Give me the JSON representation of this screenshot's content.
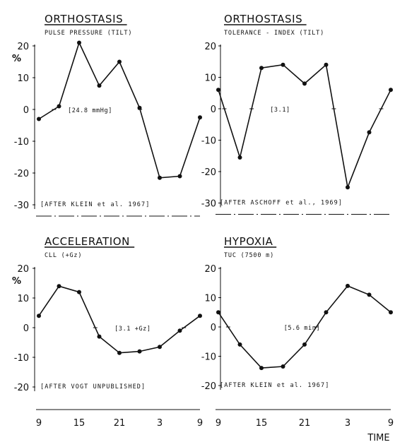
{
  "x_axis": {
    "tick_labels": [
      "9",
      "15",
      "21",
      "3",
      "9"
    ],
    "label": "TIME"
  },
  "chart_data": [
    {
      "type": "line",
      "title": "ORTHOSTASIS",
      "subtitle": "PULSE PRESSURE (TILT)",
      "annotation": "[24.8  mmHg]",
      "source": "[AFTER  KLEIN  et al.  1967]",
      "ylabel": "%",
      "ylim": [
        -30,
        20
      ],
      "yticks": [
        20,
        10,
        0,
        -10,
        -20,
        -30
      ],
      "x": [
        9,
        12,
        15,
        18,
        21,
        24,
        27,
        30,
        33
      ],
      "values": [
        -3,
        1,
        21,
        7.5,
        15,
        0.5,
        -21.5,
        -21,
        -2.5
      ]
    },
    {
      "type": "line",
      "title": "ORTHOSTASIS",
      "subtitle": "TOLERANCE - INDEX  (TILT)",
      "annotation": "[3.1]",
      "source": "[AFTER  ASCHOFF  et al., 1969]",
      "ylabel": "",
      "ylim": [
        -30,
        20
      ],
      "yticks": [
        20,
        10,
        0,
        -10,
        -20,
        -30
      ],
      "x": [
        9,
        12,
        15,
        18,
        21,
        24,
        27,
        30,
        33
      ],
      "values": [
        6,
        -15.5,
        13,
        14,
        8,
        14,
        -25,
        -7.5,
        6
      ]
    },
    {
      "type": "line",
      "title": "ACCELERATION",
      "subtitle": "CLL (+Gz)",
      "annotation": "[3.1 +Gz]",
      "source": "[AFTER  VOGT  UNPUBLISHED]",
      "ylabel": "%",
      "ylim": [
        -20,
        20
      ],
      "yticks": [
        20,
        10,
        0,
        -10,
        -20
      ],
      "x": [
        9,
        12,
        15,
        18,
        21,
        24,
        27,
        30,
        33
      ],
      "values": [
        4,
        14,
        12,
        -3,
        -8.5,
        -8,
        -6.5,
        -1,
        4
      ]
    },
    {
      "type": "line",
      "title": "HYPOXIA",
      "subtitle": "TUC (7500 m)",
      "annotation": "[5.6 min]",
      "source": "[AFTER  KLEIN  et al.  1967]",
      "ylabel": "",
      "ylim": [
        -20,
        20
      ],
      "yticks": [
        20,
        10,
        0,
        -10,
        -20
      ],
      "x": [
        9,
        12,
        15,
        18,
        21,
        24,
        27,
        30,
        33
      ],
      "values": [
        5,
        -6,
        -14,
        -13.5,
        -6,
        5,
        14,
        11,
        5
      ]
    }
  ]
}
